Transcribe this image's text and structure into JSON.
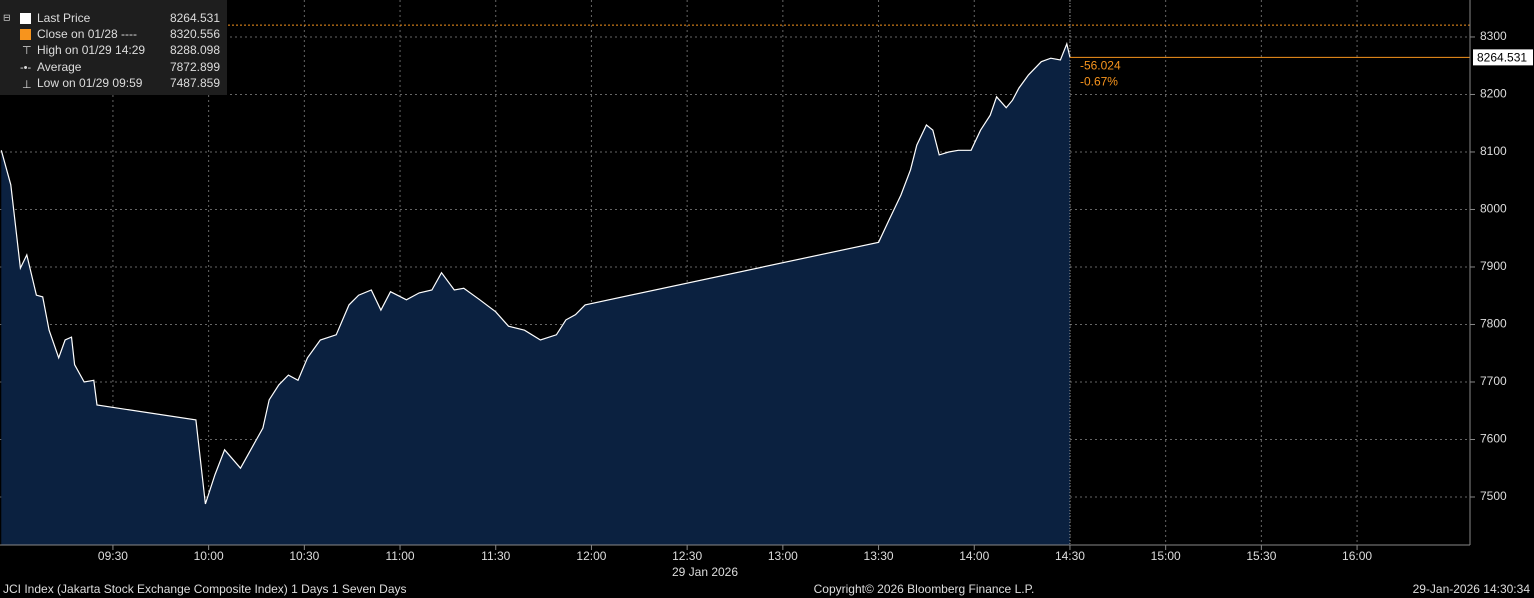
{
  "chart_data": {
    "type": "area",
    "x_label": "29 Jan 2026",
    "xlim": [
      534.6,
      995.4
    ],
    "ylim": [
      7416.5,
      8364.3
    ],
    "xticks": [
      {
        "value": 570,
        "label": "09:30"
      },
      {
        "value": 600,
        "label": "10:00"
      },
      {
        "value": 630,
        "label": "10:30"
      },
      {
        "value": 660,
        "label": "11:00"
      },
      {
        "value": 690,
        "label": "11:30"
      },
      {
        "value": 720,
        "label": "12:00"
      },
      {
        "value": 750,
        "label": "12:30"
      },
      {
        "value": 780,
        "label": "13:00"
      },
      {
        "value": 810,
        "label": "13:30"
      },
      {
        "value": 840,
        "label": "14:00"
      },
      {
        "value": 870,
        "label": "14:30"
      },
      {
        "value": 900,
        "label": "15:00"
      },
      {
        "value": 930,
        "label": "15:30"
      },
      {
        "value": 960,
        "label": "16:00"
      }
    ],
    "yticks": [
      7500,
      7600,
      7700,
      7800,
      7900,
      8000,
      8100,
      8200,
      8300
    ],
    "grid": true,
    "series": [
      {
        "name": "Last Price",
        "color": "#ffffff",
        "fill": "#0b2140",
        "x": [
          535,
          538,
          541,
          543,
          546,
          548,
          550,
          553,
          555,
          557,
          558,
          561,
          564,
          565,
          596,
          599,
          602,
          605,
          610,
          614,
          617,
          619,
          622,
          625,
          628,
          631,
          635,
          640,
          644,
          647,
          651,
          654,
          657,
          662,
          666,
          670,
          673,
          677,
          680,
          685,
          690,
          694,
          699,
          704,
          709,
          712,
          715,
          718,
          810,
          814,
          817,
          820,
          822,
          825,
          827,
          829,
          832,
          835,
          839,
          842,
          845,
          847,
          850,
          852,
          854,
          857,
          861,
          864,
          867,
          869,
          870
        ],
        "values": [
          8103,
          8043,
          7898,
          7921,
          7851,
          7848,
          7790,
          7742,
          7773,
          7778,
          7730,
          7700,
          7703,
          7660,
          7634,
          7488,
          7539,
          7582,
          7550,
          7590,
          7620,
          7669,
          7695,
          7712,
          7703,
          7742,
          7773,
          7782,
          7834,
          7851,
          7860,
          7825,
          7857,
          7843,
          7855,
          7860,
          7890,
          7860,
          7863,
          7843,
          7822,
          7797,
          7790,
          7773,
          7782,
          7808,
          7817,
          7834,
          7943,
          7990,
          8025,
          8069,
          8112,
          8147,
          8138,
          8095,
          8100,
          8103,
          8103,
          8138,
          8164,
          8196,
          8177,
          8190,
          8211,
          8234,
          8257,
          8263,
          8260,
          8288,
          8264.531
        ]
      }
    ],
    "reference_line": {
      "value": 8320.556,
      "color": "#f7941d"
    },
    "change": -56.024,
    "change_pct": {
      "value": -0.67,
      "label": "-0.67%"
    },
    "legend": [
      {
        "label": "Last Price",
        "value": 8264.531
      },
      {
        "label": "Close on 01/28 ----",
        "value": 8320.556
      },
      {
        "label": "High on 01/29 14:29",
        "value": 8288.098
      },
      {
        "label": "Average",
        "value": 7872.899
      },
      {
        "label": "Low on 01/29 09:59",
        "value": 7487.859
      }
    ],
    "footer": {
      "left": "JCI Index (Jakarta Stock Exchange Composite Index) 1 Days 1 Seven Days",
      "center": "Copyright© 2026 Bloomberg Finance L.P.",
      "right": "29-Jan-2026 14:30:34"
    }
  }
}
